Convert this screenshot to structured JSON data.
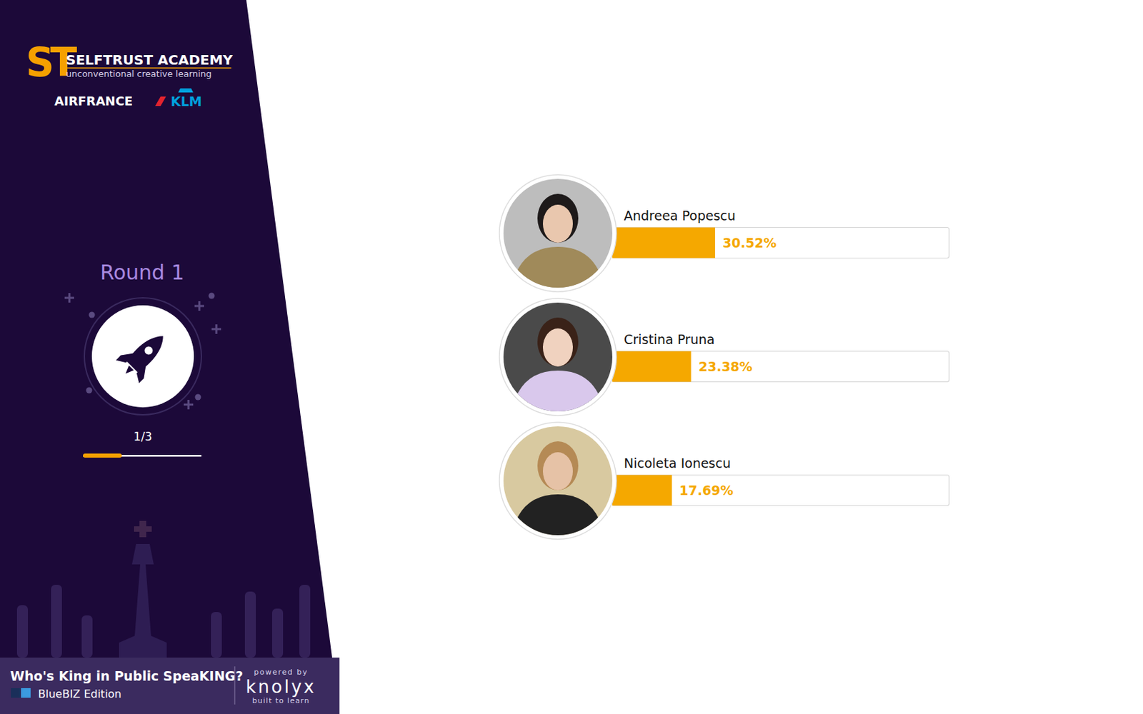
{
  "header": {
    "brand_mark": "ST",
    "brand": "SELFTRUST ACADEMY",
    "tagline": "unconventional creative learning",
    "partner_1": "AIRFRANCE",
    "partner_2": "KLM"
  },
  "round": {
    "title": "Round 1",
    "progress": "1/3"
  },
  "footer": {
    "title": "Who's King in Public SpeaKING?",
    "edition": "BlueBIZ Edition",
    "powered_by": "powered by",
    "brand": "knolyx",
    "brand_tagline": "built to learn"
  },
  "chart_data": {
    "type": "bar",
    "orientation": "horizontal",
    "categories": [
      "Andreea Popescu",
      "Cristina Pruna",
      "Nicoleta Ionescu"
    ],
    "values": [
      30.52,
      23.38,
      17.69
    ],
    "value_labels": [
      "30.52%",
      "23.38%",
      "17.69%"
    ],
    "xlim": [
      0,
      100
    ],
    "xticks": [],
    "tick_labels": false,
    "data_labels": true,
    "color": "#f5a800"
  }
}
